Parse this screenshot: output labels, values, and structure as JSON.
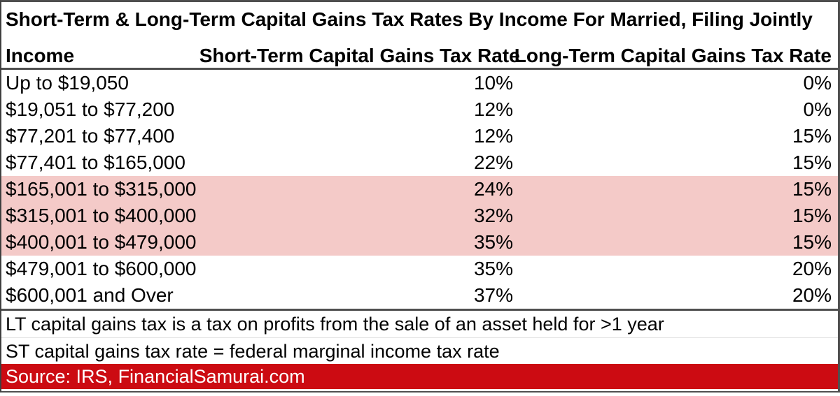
{
  "title": "Short-Term & Long-Term Capital Gains Tax Rates By Income For Married, Filing Jointly",
  "colors": {
    "highlight_pink": "#f4cac8",
    "source_bar_red": "#cc0b12",
    "source_text_white": "#ffffff",
    "border_gray": "#4f4f4f"
  },
  "table": {
    "headers": {
      "income": "Income",
      "st": "Short-Term Capital Gains Tax Rate",
      "lt": "Long-Term Capital Gains Tax Rate"
    },
    "rows": [
      {
        "income": "Up to $19,050",
        "st": "10%",
        "lt": "0%"
      },
      {
        "income": "$19,051 to $77,200",
        "st": "12%",
        "lt": "0%"
      },
      {
        "income": "$77,201 to $77,400",
        "st": "12%",
        "lt": "15%"
      },
      {
        "income": "$77,401 to $165,000",
        "st": "22%",
        "lt": "15%"
      },
      {
        "income": "$165,001 to $315,000",
        "st": "24%",
        "lt": "15%"
      },
      {
        "income": "$315,001 to $400,000",
        "st": "32%",
        "lt": "15%"
      },
      {
        "income": "$400,001 to $479,000",
        "st": "35%",
        "lt": "15%"
      },
      {
        "income": "$479,001 to $600,000",
        "st": "35%",
        "lt": "20%"
      },
      {
        "income": "$600,001 and Over",
        "st": "37%",
        "lt": "20%"
      }
    ],
    "highlighted_row_indices": [
      4,
      5,
      6
    ]
  },
  "notes": [
    "LT capital gains tax is a tax on profits from the sale of an asset held for >1 year",
    "ST capital gains tax rate = federal marginal income tax rate"
  ],
  "source": "Source: IRS, FinancialSamurai.com",
  "chart_data": {
    "type": "table",
    "title": "Short-Term & Long-Term Capital Gains Tax Rates By Income For Married, Filing Jointly",
    "columns": [
      "Income",
      "Short-Term Capital Gains Tax Rate",
      "Long-Term Capital Gains Tax Rate"
    ],
    "rows": [
      [
        "Up to $19,050",
        "10%",
        "0%"
      ],
      [
        "$19,051 to $77,200",
        "12%",
        "0%"
      ],
      [
        "$77,201 to $77,400",
        "12%",
        "15%"
      ],
      [
        "$77,401 to $165,000",
        "22%",
        "15%"
      ],
      [
        "$165,001 to $315,000",
        "24%",
        "15%"
      ],
      [
        "$315,001 to $400,000",
        "32%",
        "15%"
      ],
      [
        "$400,001 to $479,000",
        "35%",
        "15%"
      ],
      [
        "$479,001 to $600,000",
        "35%",
        "20%"
      ],
      [
        "$600,001 and Over",
        "37%",
        "20%"
      ]
    ],
    "highlighted_row_indices": [
      4,
      5,
      6
    ],
    "notes": [
      "LT capital gains tax is a tax on profits from the sale of an asset held for >1 year",
      "ST capital gains tax rate = federal marginal income tax rate"
    ],
    "source": "Source: IRS, FinancialSamurai.com"
  }
}
